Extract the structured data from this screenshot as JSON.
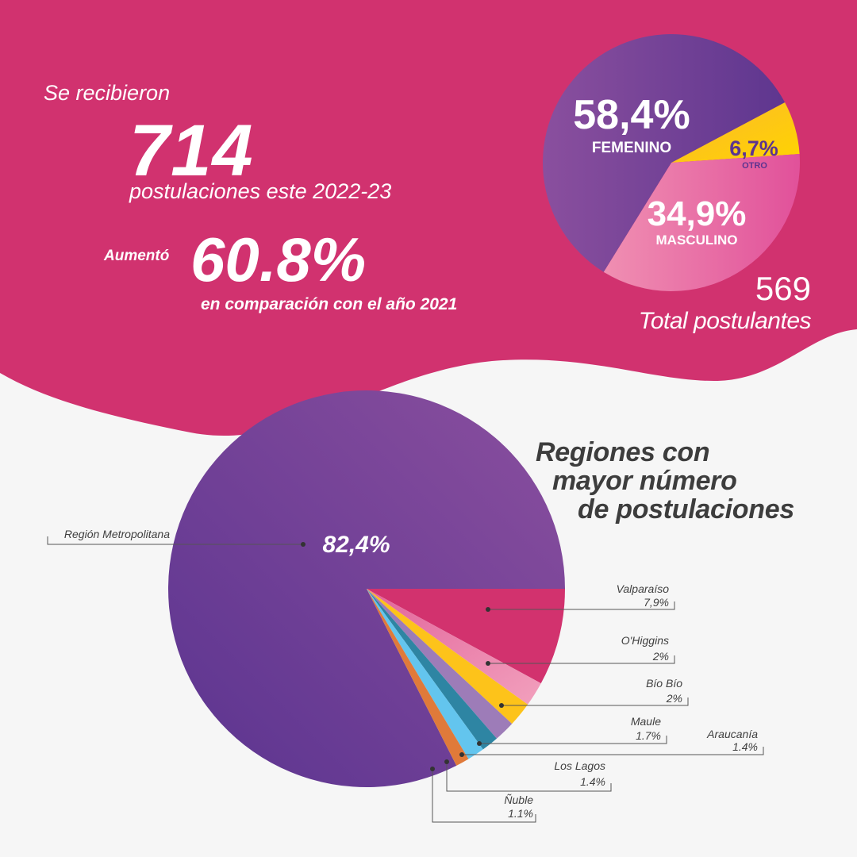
{
  "intro": {
    "lead": "Se recibieron",
    "count": "714",
    "count_caption": "postulaciones este 2022-23",
    "increase_label": "Aumentó",
    "increase_value": "60.8%",
    "increase_caption": "en comparación con el año 2021"
  },
  "total": {
    "value": "569",
    "caption": "Total postulantes"
  },
  "region_title": {
    "line1": "Regiones con",
    "line2": "mayor número",
    "line3": "de postulaciones"
  },
  "colors": {
    "banner": "#d1326f",
    "background": "#f6f6f6",
    "purple_dark": "#5b3490",
    "purple_light": "#8a4f9e",
    "magenta": "#d2326e",
    "pink": "#e97aa6",
    "yellow": "#fdc31a",
    "lavender": "#9d7cb8",
    "teal": "#2e85a3",
    "sky": "#63c5ee",
    "orange": "#e07a3a"
  },
  "chart_data": [
    {
      "type": "pie",
      "title": "",
      "slices": [
        {
          "label": "FEMENINO",
          "value": 58.4,
          "display": "58,4%",
          "color": "#6b3b95"
        },
        {
          "label": "OTRO",
          "value": 6.7,
          "display": "6,7%",
          "color": "#fdc31a"
        },
        {
          "label": "MASCULINO",
          "value": 34.9,
          "display": "34,9%",
          "color": "#e4659b"
        }
      ]
    },
    {
      "type": "pie",
      "title": "Regiones con mayor número de postulaciones",
      "slices": [
        {
          "label": "Región Metropolitana",
          "value": 82.4,
          "display": "82,4%",
          "color": "#6a3a96"
        },
        {
          "label": "Valparaíso",
          "value": 7.9,
          "display": "7,9%",
          "color": "#d2326e"
        },
        {
          "label": "O'Higgins",
          "value": 2,
          "display": "2%",
          "color": "#ec86ad"
        },
        {
          "label": "Bío Bío",
          "value": 2,
          "display": "2%",
          "color": "#fdc31a"
        },
        {
          "label": "Maule",
          "value": 1.7,
          "display": "1.7%",
          "color": "#9d7cb8"
        },
        {
          "label": "Araucanía",
          "value": 1.4,
          "display": "1.4%",
          "color": "#2e85a3"
        },
        {
          "label": "Los Lagos",
          "value": 1.4,
          "display": "1.4%",
          "color": "#63c5ee"
        },
        {
          "label": "Ñuble",
          "value": 1.1,
          "display": "1.1%",
          "color": "#e07a3a"
        }
      ]
    }
  ]
}
